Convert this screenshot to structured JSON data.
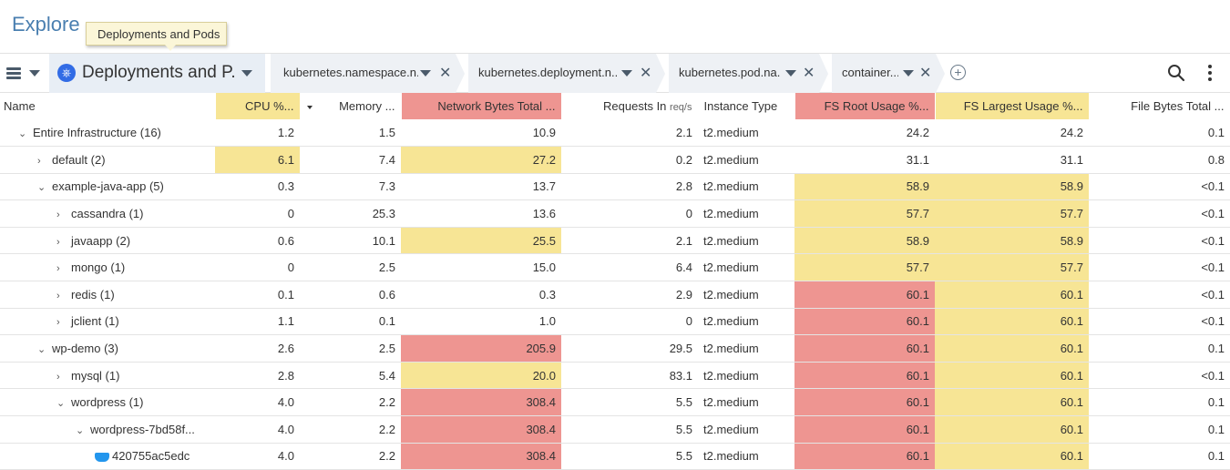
{
  "page": {
    "title": "Explore"
  },
  "tooltip": {
    "text": "Deployments and Pods"
  },
  "toolbar": {
    "group_label": "Deployments and P...",
    "filters": [
      {
        "label": "kubernetes.namespace.n..."
      },
      {
        "label": "kubernetes.deployment.n..."
      },
      {
        "label": "kubernetes.pod.na..."
      },
      {
        "label": "container..."
      }
    ]
  },
  "icons": {
    "menu": "list-icon",
    "k8s": "kubernetes-icon",
    "close": "close-icon",
    "add": "add-circle-icon",
    "search": "search-icon",
    "more": "more-vertical-icon",
    "docker": "docker-icon"
  },
  "colors": {
    "highlight_yellow": "#f7e595",
    "highlight_red": "#ee9591",
    "accent": "#4a7fb0"
  },
  "table": {
    "headers": {
      "name": "Name",
      "cpu": "CPU %...",
      "memory": "Memory ...",
      "network": "Network Bytes Total ...",
      "requests": "Requests In",
      "requests_unit": "req/s",
      "instance": "Instance Type",
      "fs_root": "FS Root Usage %...",
      "fs_largest": "FS Largest Usage %...",
      "file_bytes": "File Bytes Total ..."
    },
    "rows": [
      {
        "caret": "⌄",
        "indent": 0,
        "name": "Entire Infrastructure (16)",
        "cpu": "1.2",
        "memory": "1.5",
        "network": "10.9",
        "requests": "2.1",
        "instance": "t2.medium",
        "fs_root": "24.2",
        "fs_largest": "24.2",
        "file_bytes": "0.1"
      },
      {
        "caret": "›",
        "indent": 1,
        "name": "default (2)",
        "cpu": "6.1",
        "memory": "7.4",
        "network": "27.2",
        "requests": "0.2",
        "instance": "t2.medium",
        "fs_root": "31.1",
        "fs_largest": "31.1",
        "file_bytes": "0.8"
      },
      {
        "caret": "⌄",
        "indent": 1,
        "name": "example-java-app (5)",
        "cpu": "0.3",
        "memory": "7.3",
        "network": "13.7",
        "requests": "2.8",
        "instance": "t2.medium",
        "fs_root": "58.9",
        "fs_largest": "58.9",
        "file_bytes": "<0.1"
      },
      {
        "caret": "›",
        "indent": 2,
        "name": "cassandra (1)",
        "cpu": "0",
        "memory": "25.3",
        "network": "13.6",
        "requests": "0",
        "instance": "t2.medium",
        "fs_root": "57.7",
        "fs_largest": "57.7",
        "file_bytes": "<0.1"
      },
      {
        "caret": "›",
        "indent": 2,
        "name": "javaapp (2)",
        "cpu": "0.6",
        "memory": "10.1",
        "network": "25.5",
        "requests": "2.1",
        "instance": "t2.medium",
        "fs_root": "58.9",
        "fs_largest": "58.9",
        "file_bytes": "<0.1"
      },
      {
        "caret": "›",
        "indent": 2,
        "name": "mongo (1)",
        "cpu": "0",
        "memory": "2.5",
        "network": "15.0",
        "requests": "6.4",
        "instance": "t2.medium",
        "fs_root": "57.7",
        "fs_largest": "57.7",
        "file_bytes": "<0.1"
      },
      {
        "caret": "›",
        "indent": 2,
        "name": "redis (1)",
        "cpu": "0.1",
        "memory": "0.6",
        "network": "0.3",
        "requests": "2.9",
        "instance": "t2.medium",
        "fs_root": "60.1",
        "fs_largest": "60.1",
        "file_bytes": "<0.1"
      },
      {
        "caret": "›",
        "indent": 2,
        "name": "jclient (1)",
        "cpu": "1.1",
        "memory": "0.1",
        "network": "1.0",
        "requests": "0",
        "instance": "t2.medium",
        "fs_root": "60.1",
        "fs_largest": "60.1",
        "file_bytes": "<0.1"
      },
      {
        "caret": "⌄",
        "indent": 1,
        "name": "wp-demo (3)",
        "cpu": "2.6",
        "memory": "2.5",
        "network": "205.9",
        "requests": "29.5",
        "instance": "t2.medium",
        "fs_root": "60.1",
        "fs_largest": "60.1",
        "file_bytes": "0.1"
      },
      {
        "caret": "›",
        "indent": 2,
        "name": "mysql (1)",
        "cpu": "2.8",
        "memory": "5.4",
        "network": "20.0",
        "requests": "83.1",
        "instance": "t2.medium",
        "fs_root": "60.1",
        "fs_largest": "60.1",
        "file_bytes": "<0.1"
      },
      {
        "caret": "⌄",
        "indent": 2,
        "name": "wordpress (1)",
        "cpu": "4.0",
        "memory": "2.2",
        "network": "308.4",
        "requests": "5.5",
        "instance": "t2.medium",
        "fs_root": "60.1",
        "fs_largest": "60.1",
        "file_bytes": "0.1"
      },
      {
        "caret": "⌄",
        "indent": 3,
        "name": "wordpress-7bd58f...",
        "cpu": "4.0",
        "memory": "2.2",
        "network": "308.4",
        "requests": "5.5",
        "instance": "t2.medium",
        "fs_root": "60.1",
        "fs_largest": "60.1",
        "file_bytes": "0.1"
      },
      {
        "caret": "",
        "indent": 4,
        "docker": true,
        "name": "420755ac5edc",
        "cpu": "4.0",
        "memory": "2.2",
        "network": "308.4",
        "requests": "5.5",
        "instance": "t2.medium",
        "fs_root": "60.1",
        "fs_largest": "60.1",
        "file_bytes": "0.1"
      }
    ],
    "cell_colors": [
      {
        "cpu": "",
        "network": "",
        "fs_root": "",
        "fs_largest": ""
      },
      {
        "cpu": "yellow",
        "network": "yellow",
        "fs_root": "",
        "fs_largest": ""
      },
      {
        "cpu": "",
        "network": "",
        "fs_root": "yellow",
        "fs_largest": "yellow"
      },
      {
        "cpu": "",
        "network": "",
        "fs_root": "yellow",
        "fs_largest": "yellow"
      },
      {
        "cpu": "",
        "network": "yellow",
        "fs_root": "yellow",
        "fs_largest": "yellow"
      },
      {
        "cpu": "",
        "network": "",
        "fs_root": "yellow",
        "fs_largest": "yellow"
      },
      {
        "cpu": "",
        "network": "",
        "fs_root": "red",
        "fs_largest": "yellow"
      },
      {
        "cpu": "",
        "network": "",
        "fs_root": "red",
        "fs_largest": "yellow"
      },
      {
        "cpu": "",
        "network": "red",
        "fs_root": "red",
        "fs_largest": "yellow"
      },
      {
        "cpu": "",
        "network": "yellow",
        "fs_root": "red",
        "fs_largest": "yellow"
      },
      {
        "cpu": "",
        "network": "red",
        "fs_root": "red",
        "fs_largest": "yellow"
      },
      {
        "cpu": "",
        "network": "red",
        "fs_root": "red",
        "fs_largest": "yellow"
      },
      {
        "cpu": "",
        "network": "red",
        "fs_root": "red",
        "fs_largest": "yellow"
      }
    ]
  }
}
